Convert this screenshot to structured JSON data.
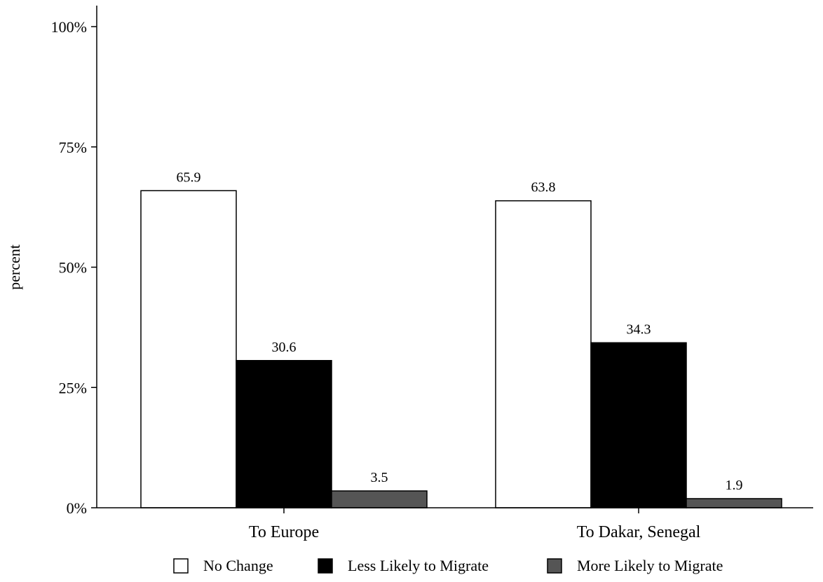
{
  "chart_data": {
    "type": "bar",
    "categories": [
      "To Europe",
      "To Dakar, Senegal"
    ],
    "series": [
      {
        "name": "No Change",
        "values": [
          65.9,
          63.8
        ],
        "color": "#ffffff"
      },
      {
        "name": "Less Likely to Migrate",
        "values": [
          30.6,
          34.3
        ],
        "color": "#000000"
      },
      {
        "name": "More Likely to Migrate",
        "values": [
          3.5,
          1.9
        ],
        "color": "#555555"
      }
    ],
    "value_labels": [
      [
        "65.9",
        "63.8"
      ],
      [
        "30.6",
        "34.3"
      ],
      [
        "3.5",
        "1.9"
      ]
    ],
    "ylabel": "percent",
    "yticks": [
      0,
      25,
      50,
      75,
      100
    ],
    "ytick_labels": [
      "0%",
      "25%",
      "50%",
      "75%",
      "100%"
    ],
    "ylim": [
      0,
      100
    ],
    "grid": false,
    "legend_position": "bottom"
  }
}
